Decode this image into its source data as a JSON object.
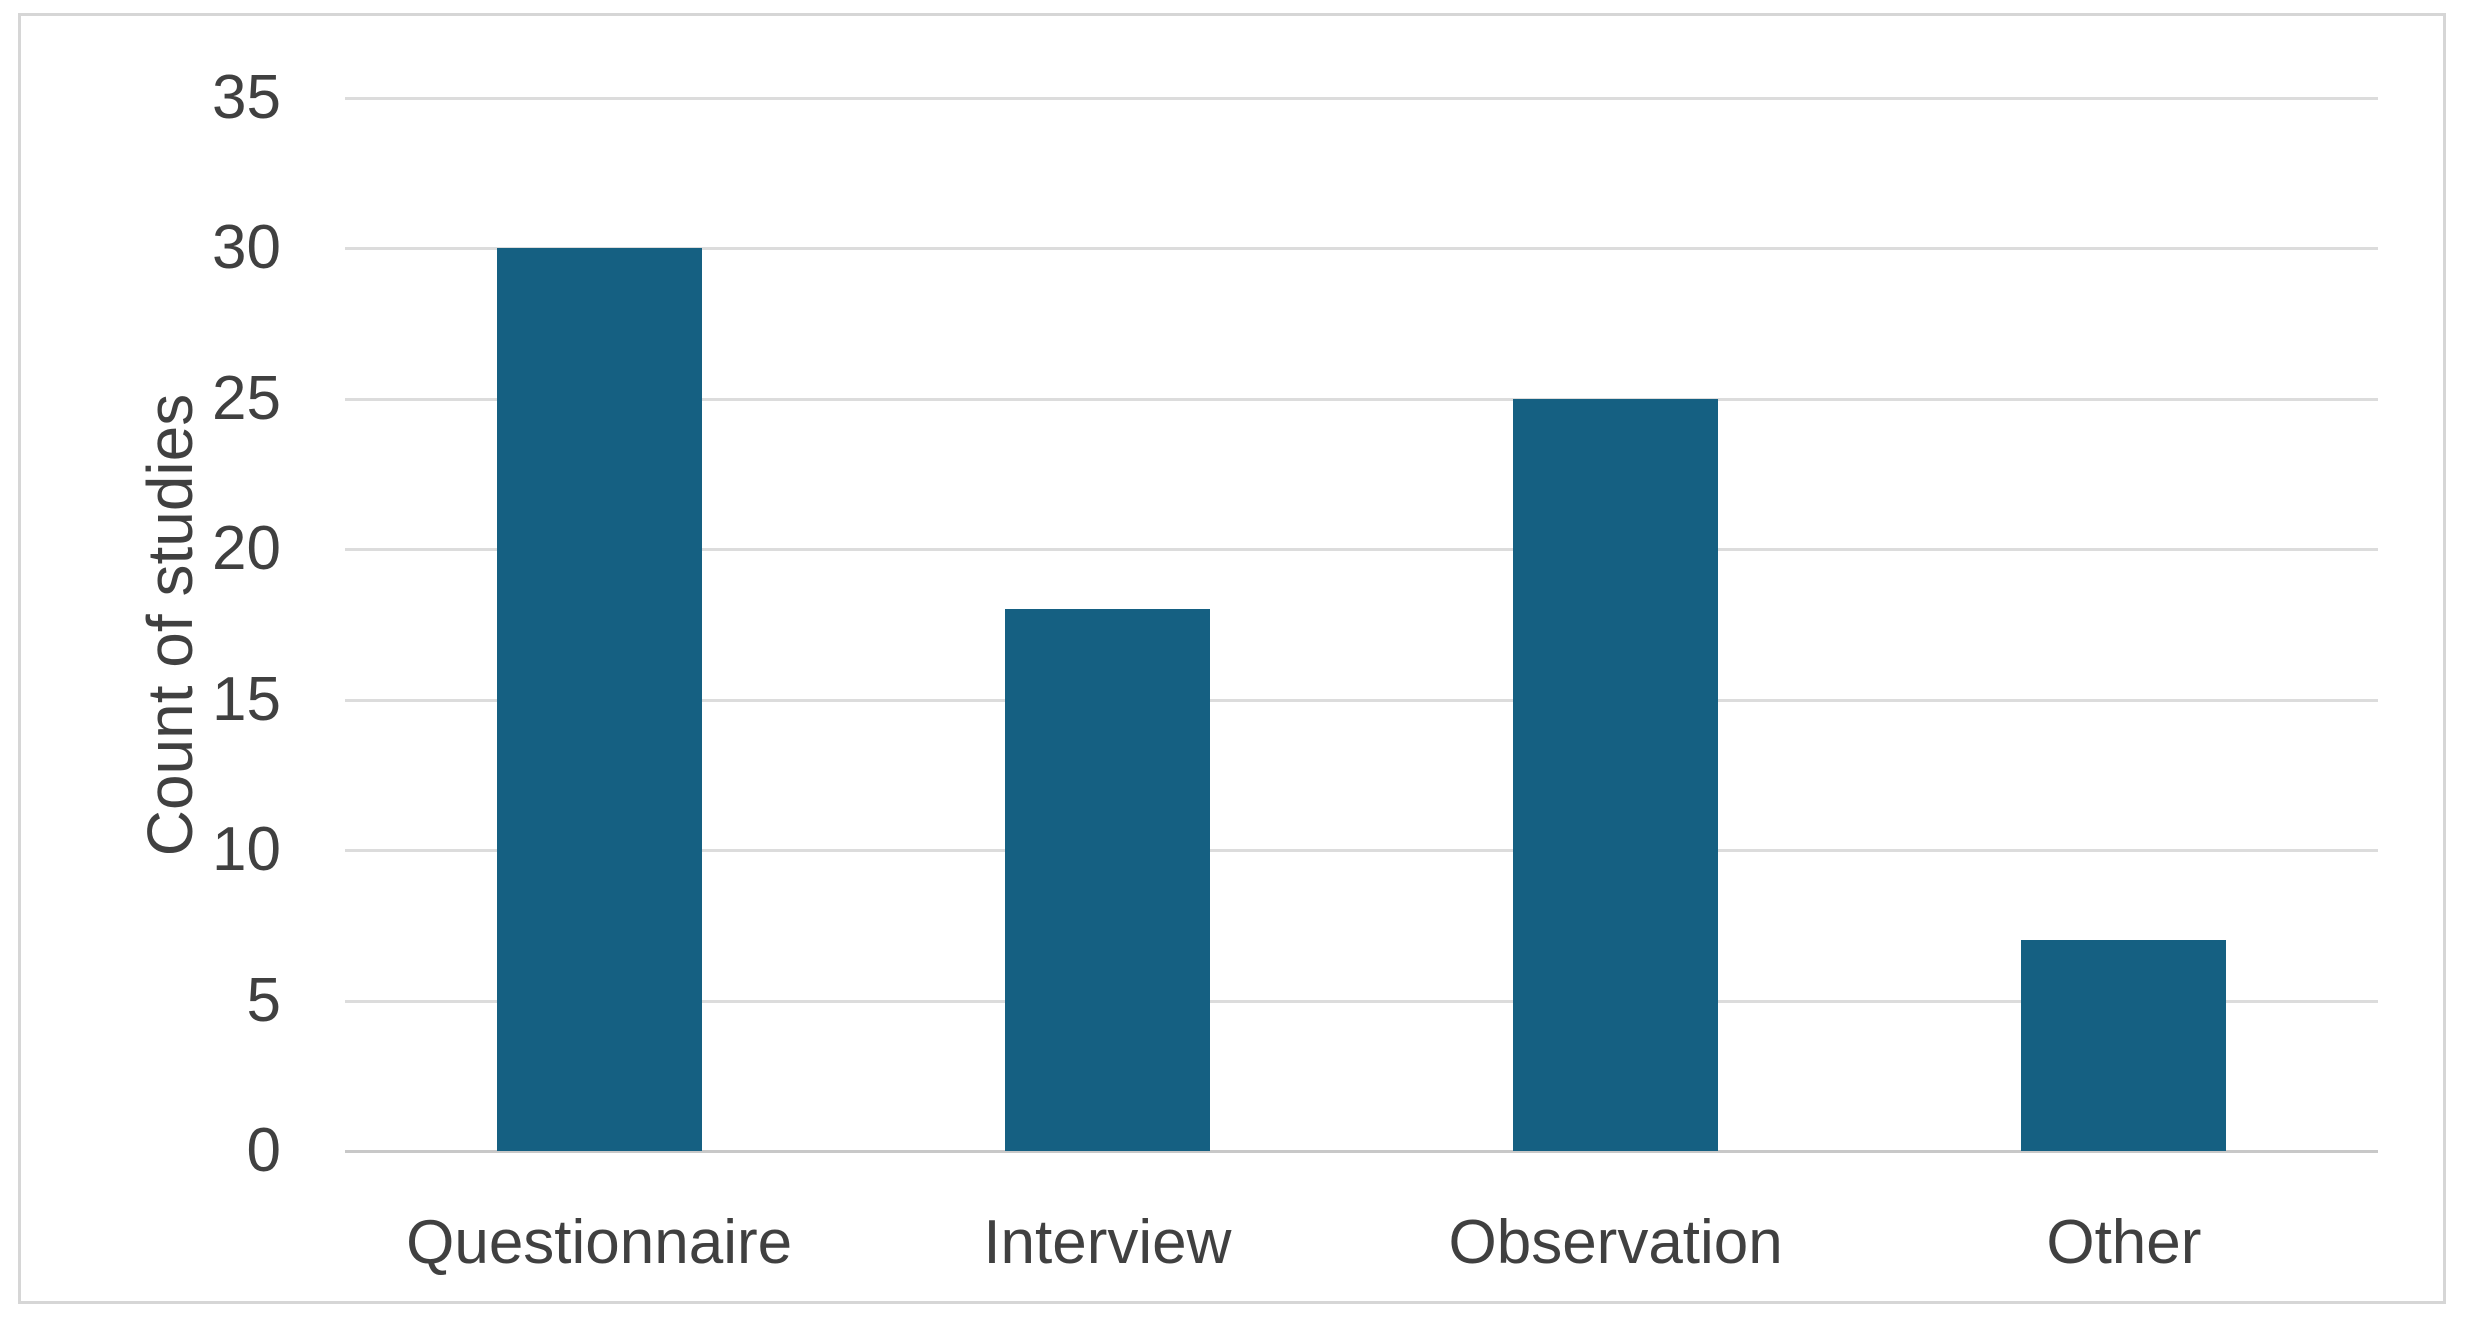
{
  "chart_data": {
    "type": "bar",
    "categories": [
      "Questionnaire",
      "Interview",
      "Observation",
      "Other"
    ],
    "values": [
      30,
      18,
      25,
      7
    ],
    "title": "",
    "xlabel": "",
    "ylabel": "Count of studies",
    "ylim": [
      0,
      35
    ],
    "yticks": [
      0,
      5,
      10,
      15,
      20,
      25,
      30,
      35
    ],
    "grid": true,
    "legend": "none",
    "colors": {
      "bar": "#156082",
      "gridline": "#dcdcdc",
      "axis_line": "#c8c8c8",
      "text": "#404040",
      "frame_border": "#d6d6d6",
      "background": "#ffffff"
    }
  }
}
